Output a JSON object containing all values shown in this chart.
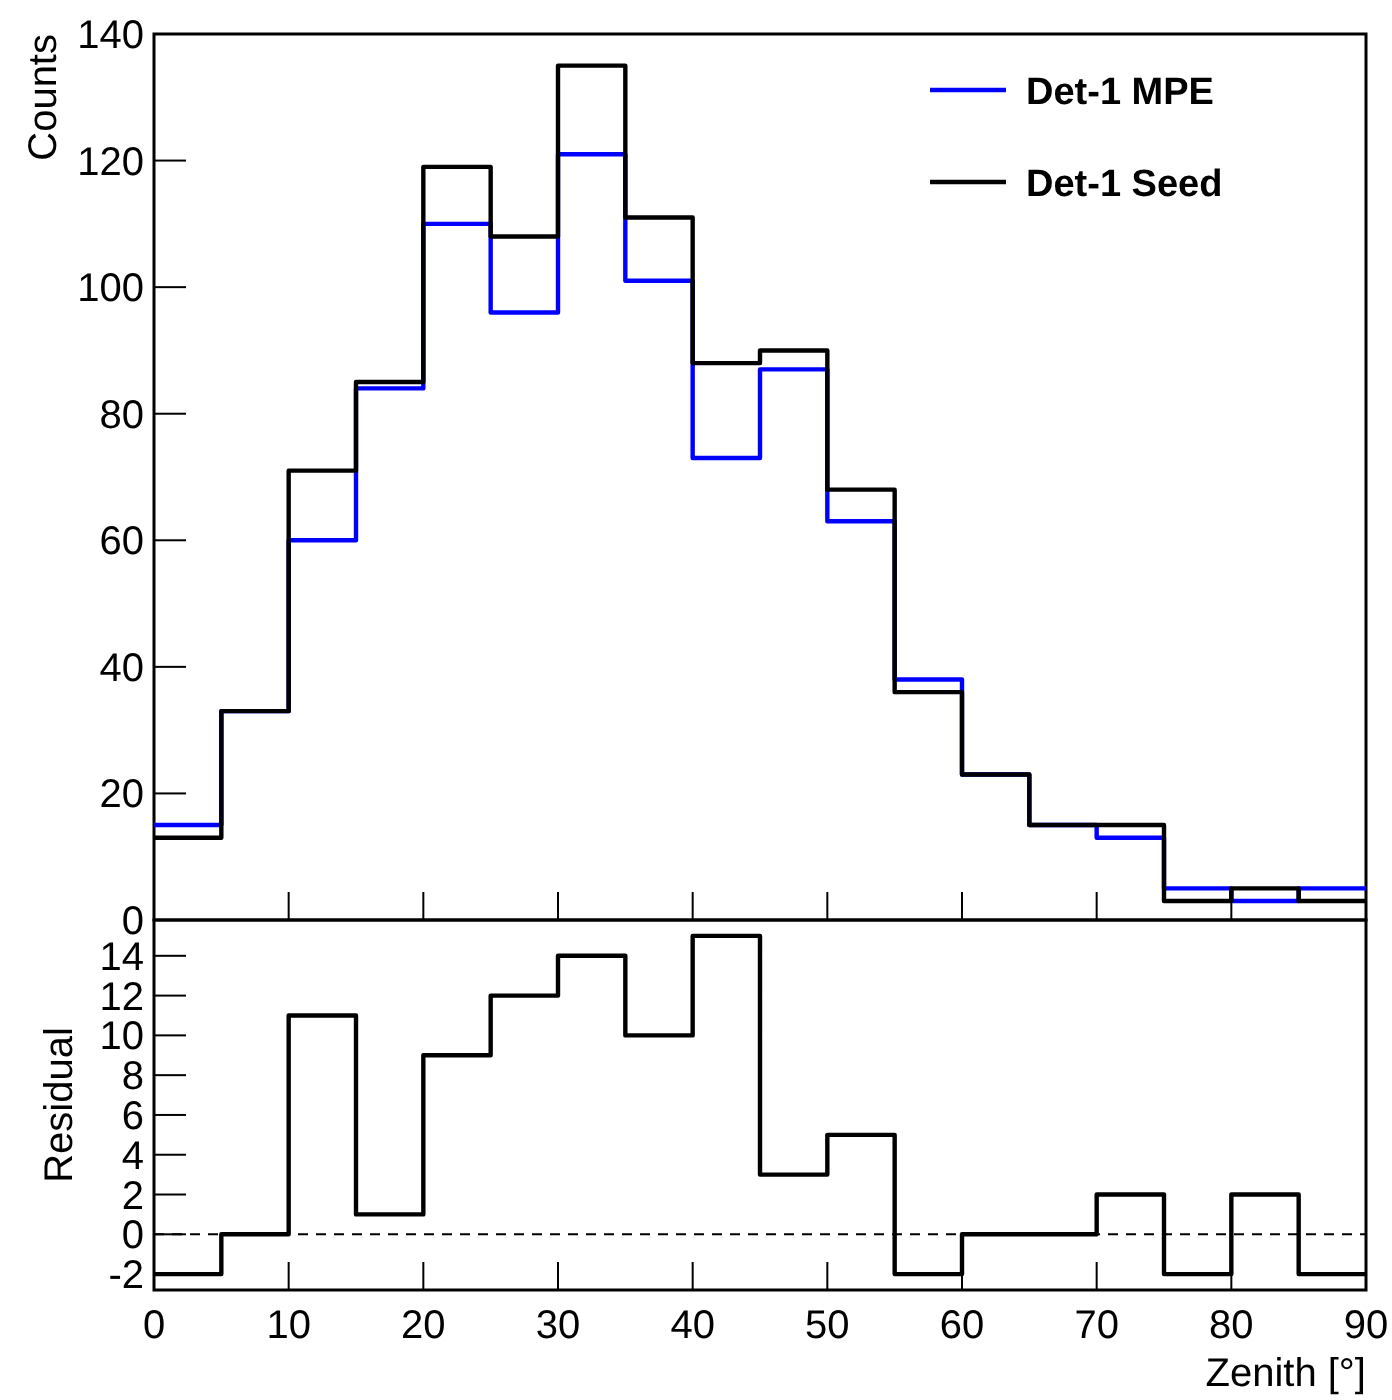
{
  "chart_data": [
    {
      "type": "histogram",
      "ylabel": "Counts",
      "bins": [
        0,
        5,
        10,
        15,
        20,
        25,
        30,
        35,
        40,
        45,
        50,
        55,
        60,
        65,
        70,
        75,
        80,
        85,
        90
      ],
      "series": [
        {
          "name": "Det-1 MPE",
          "color": "#0000ff",
          "values": [
            15,
            33,
            60,
            84,
            110,
            96,
            121,
            101,
            73,
            87,
            63,
            38,
            23,
            15,
            13,
            5,
            3,
            5
          ]
        },
        {
          "name": "Det-1 Seed",
          "color": "#000000",
          "values": [
            13,
            33,
            71,
            85,
            119,
            108,
            135,
            111,
            88,
            90,
            68,
            36,
            23,
            15,
            15,
            3,
            5,
            3
          ]
        }
      ],
      "xlim": [
        0,
        90
      ],
      "xticks": [
        0,
        10,
        20,
        30,
        40,
        50,
        60,
        70,
        80,
        90
      ],
      "ylim": [
        0,
        140
      ],
      "yticks": [
        0,
        20,
        40,
        60,
        80,
        100,
        120,
        140
      ],
      "tick_labels": "y",
      "legend": "top right",
      "grid": false
    },
    {
      "type": "histogram",
      "xlabel": "Zenith [°]",
      "ylabel": "Residual",
      "bins": [
        0,
        5,
        10,
        15,
        20,
        25,
        30,
        35,
        40,
        45,
        50,
        55,
        60,
        65,
        70,
        75,
        80,
        85,
        90
      ],
      "series": [
        {
          "color": "#000000",
          "values": [
            -2,
            0,
            11,
            1,
            9,
            12,
            14,
            10,
            15,
            3,
            5,
            -2,
            0,
            0,
            2,
            -2,
            2,
            -2
          ]
        }
      ],
      "xlim": [
        0,
        90
      ],
      "xticks": [
        0,
        10,
        20,
        30,
        40,
        50,
        60,
        70,
        80,
        90
      ],
      "ylim": [
        -2.8,
        15.8
      ],
      "yticks": [
        -2,
        0,
        2,
        4,
        6,
        8,
        10,
        12,
        14
      ],
      "ref_lines": [
        {
          "axis": "y",
          "value": 0,
          "color": "#000000",
          "line_style": "dashed"
        }
      ],
      "grid": false
    }
  ]
}
